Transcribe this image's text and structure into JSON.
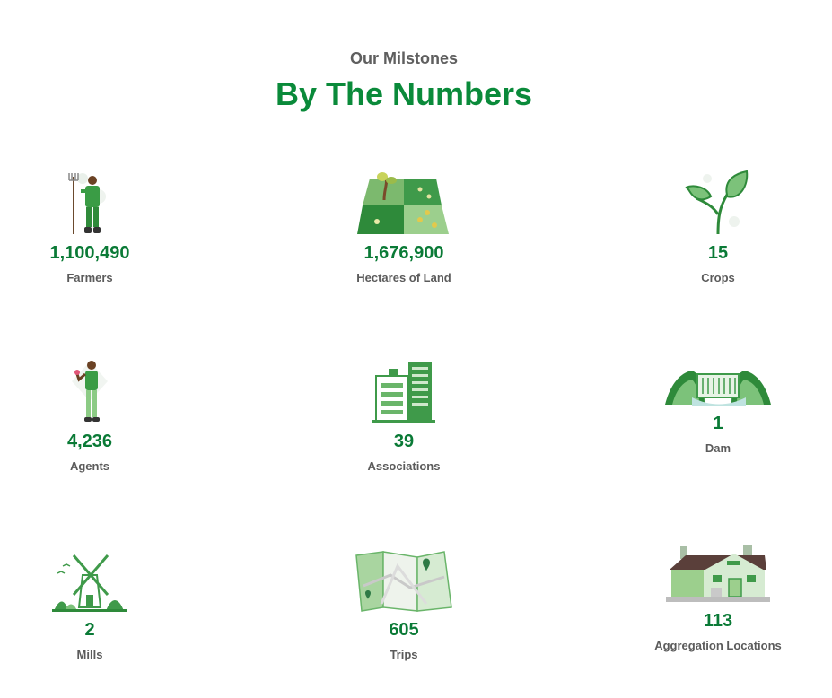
{
  "header": {
    "subtitle": "Our Milstones",
    "title": "By The Numbers"
  },
  "stats": [
    {
      "value": "1,100,490",
      "label": "Farmers",
      "icon": "farmer-with-pitchfork-icon"
    },
    {
      "value": "1,676,900",
      "label": "Hectares of Land",
      "icon": "farmland-icon"
    },
    {
      "value": "15",
      "label": "Crops",
      "icon": "sprout-icon"
    },
    {
      "value": "4,236",
      "label": "Agents",
      "icon": "agent-person-icon"
    },
    {
      "value": "39",
      "label": "Associations",
      "icon": "buildings-icon"
    },
    {
      "value": "1",
      "label": "Dam",
      "icon": "dam-icon"
    },
    {
      "value": "2",
      "label": "Mills",
      "icon": "windmill-icon"
    },
    {
      "value": "605",
      "label": "Trips",
      "icon": "map-icon"
    },
    {
      "value": "113",
      "label": "Aggregation Locations",
      "icon": "warehouse-house-icon"
    }
  ],
  "colors": {
    "accent": "#0a8a3a",
    "value": "#0a7a36",
    "text": "#5b5b5b"
  }
}
